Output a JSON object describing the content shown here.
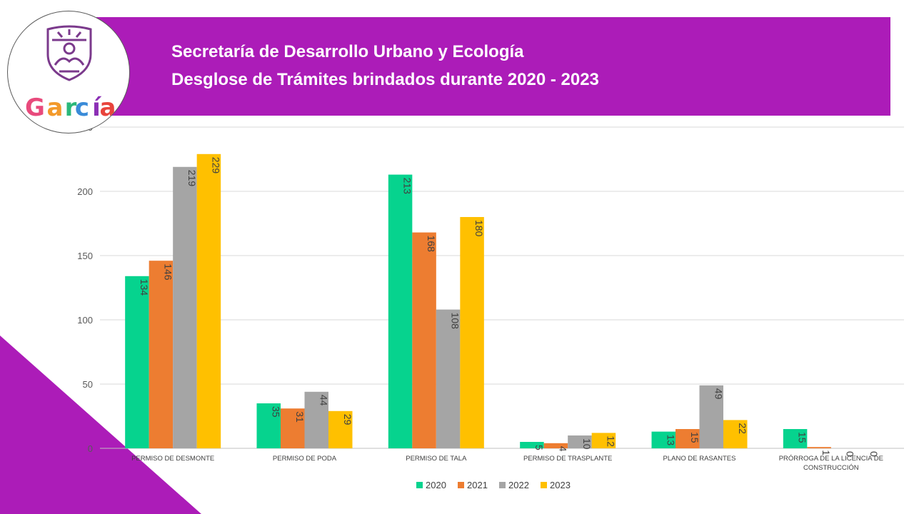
{
  "header": {
    "title_line1": "Secretaría de Desarrollo Urbano y Ecología",
    "title_line2": "Desglose de Trámites brindados durante 2020 - 2023"
  },
  "logo": {
    "wordmark": "García",
    "letters": [
      "G",
      "a",
      "r",
      "c",
      "í",
      "a"
    ],
    "letter_colors": [
      "#e84a7c",
      "#f39a2b",
      "#2bb87a",
      "#3a8bd8",
      "#8b2fb5",
      "#e8443c"
    ]
  },
  "colors": {
    "header_bg": "#ac1cb8",
    "corner": "#ac1cb8",
    "shield": "#7b3a8c"
  },
  "chart_data": {
    "type": "bar",
    "categories": [
      "PERMISO DE DESMONTE",
      "PERMISO DE PODA",
      "PERMISO DE TALA",
      "PERMISO DE TRASPLANTE",
      "PLANO DE RASANTES",
      "PRÓRROGA DE LA LICENCIA DE CONSTRUCCIÓN"
    ],
    "series": [
      {
        "name": "2020",
        "color": "#06d38e",
        "values": [
          134,
          35,
          213,
          5,
          13,
          15
        ]
      },
      {
        "name": "2021",
        "color": "#ed7d31",
        "values": [
          146,
          31,
          168,
          4,
          15,
          1
        ]
      },
      {
        "name": "2022",
        "color": "#a5a5a5",
        "values": [
          219,
          44,
          108,
          10,
          49,
          0
        ]
      },
      {
        "name": "2023",
        "color": "#ffc000",
        "values": [
          229,
          29,
          180,
          12,
          22,
          0
        ]
      }
    ],
    "y_ticks": [
      0,
      50,
      100,
      150,
      200,
      250
    ],
    "ylim": [
      0,
      250
    ],
    "grid": true,
    "legend": "bottom",
    "data_labels": "rotated-inside"
  }
}
